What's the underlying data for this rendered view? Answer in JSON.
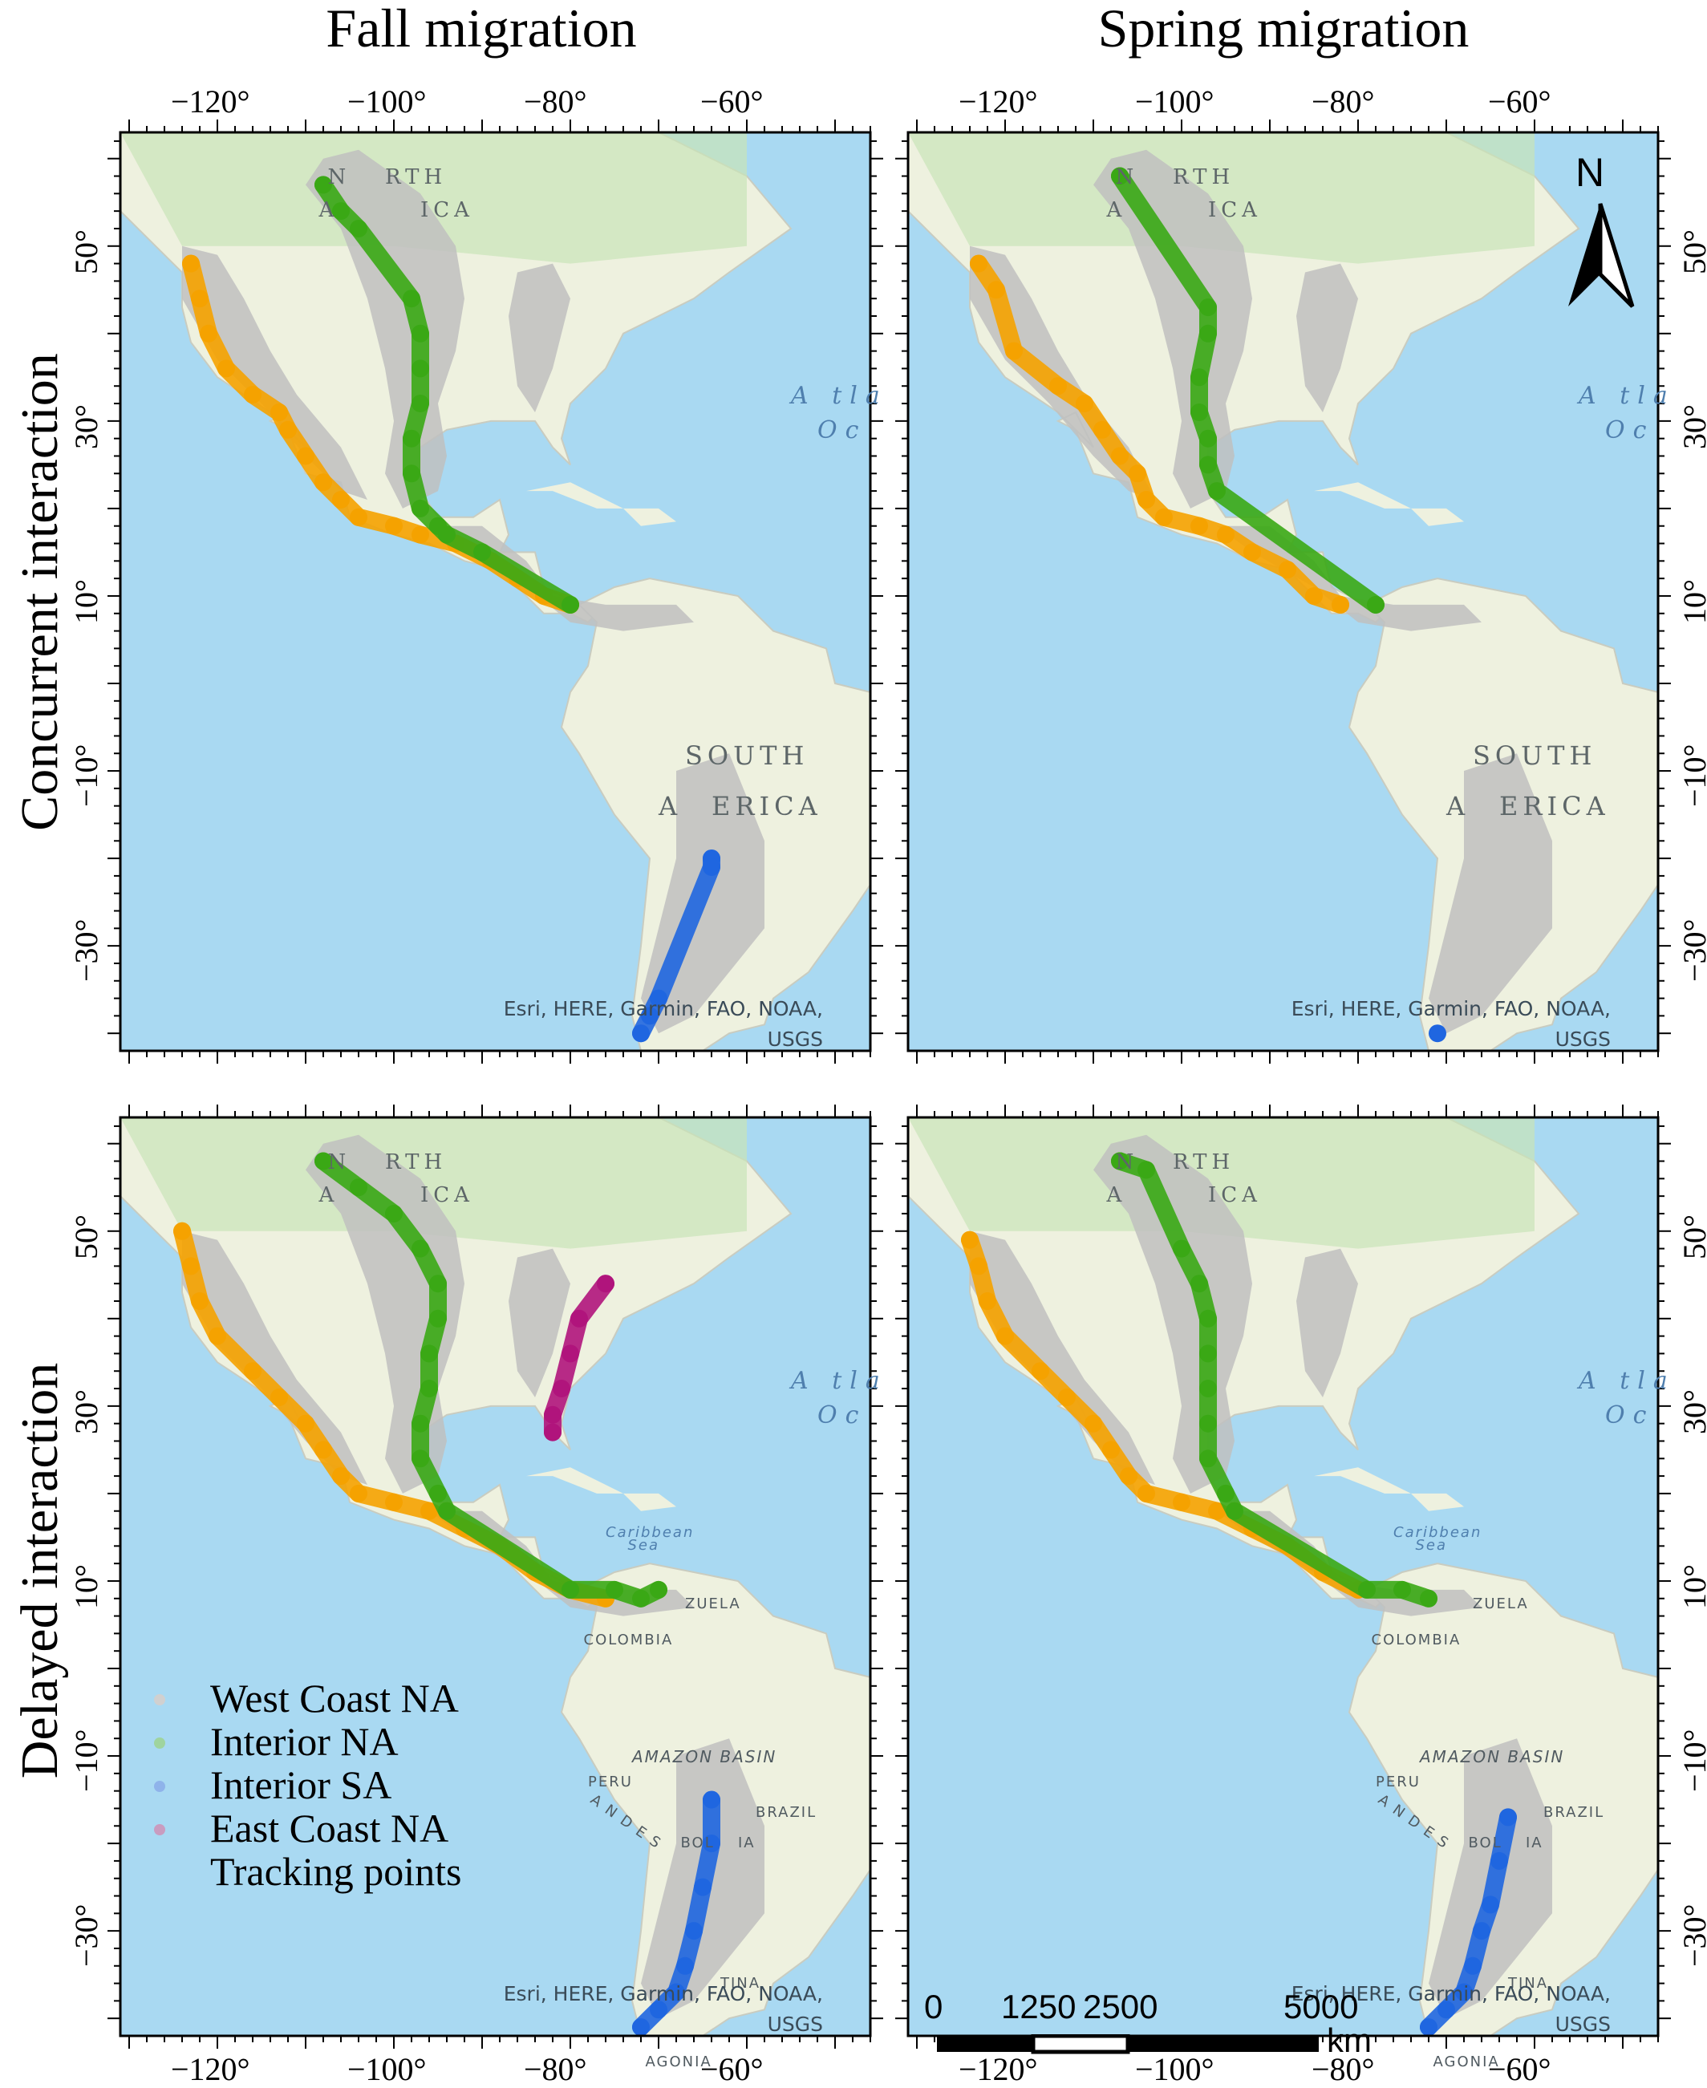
{
  "columns": {
    "fall": "Fall migration",
    "spring": "Spring migration"
  },
  "rows": {
    "concurrent": "Concurrent interaction",
    "delayed": "Delayed interaction"
  },
  "axes": {
    "lon_labels": [
      "−120°",
      "−100°",
      "−80°",
      "−60°"
    ],
    "lat_labels": [
      "50°",
      "30°",
      "10°",
      "−10°",
      "−30°"
    ],
    "lon_values": [
      -120,
      -100,
      -80,
      -60
    ],
    "lat_values": [
      50,
      30,
      10,
      -10,
      -30
    ],
    "lon_range": [
      -131,
      -46
    ],
    "lat_range": [
      -42,
      63
    ]
  },
  "basemap": {
    "attribution_line1": "Esri, HERE, Garmin, FAO, NOAA,",
    "attribution_line2": "USGS",
    "north_america": [
      "N",
      "RTH",
      "A",
      "ICA"
    ],
    "south_america": [
      "SOUTH",
      "A",
      "ERICA"
    ],
    "atlantic": [
      "A tla",
      "Oc"
    ],
    "caribbean": [
      "Caribbean",
      "Sea"
    ],
    "country_labels": [
      "ZUELA",
      "COLOMBIA",
      "PERU",
      "BRAZIL",
      "BOL",
      "IA",
      "TINA",
      "AGONIA"
    ],
    "region_labels": [
      "AMAZON BASIN",
      "A N D E S"
    ]
  },
  "legend": {
    "items": [
      {
        "label": "West Coast NA",
        "color": "#f5a200"
      },
      {
        "label": "Interior NA",
        "color": "#3aa815"
      },
      {
        "label": "Interior SA",
        "color": "#1f66e0"
      },
      {
        "label": "East Coast NA",
        "color": "#b0147c"
      }
    ],
    "footer": "Tracking points"
  },
  "north_arrow": {
    "label": "N"
  },
  "scale_bar": {
    "labels": [
      "0",
      "1250",
      "2500",
      "5000"
    ],
    "values": [
      0,
      1250,
      2500,
      5000
    ],
    "unit": "km"
  },
  "colors": {
    "west_coast": "#f5a200",
    "interior_na": "#3aa815",
    "interior_sa": "#1f66e0",
    "east_coast": "#b0147c",
    "ocean": "#a9d9f2",
    "land": "#eef1df",
    "range": "#c0c0c0"
  },
  "tracks": {
    "concurrent_fall": {
      "west_coast": [
        [
          -123,
          48
        ],
        [
          -122,
          44
        ],
        [
          -121,
          40
        ],
        [
          -119,
          36
        ],
        [
          -116,
          33
        ],
        [
          -113,
          31
        ],
        [
          -112,
          29
        ],
        [
          -110,
          26
        ],
        [
          -108,
          23
        ],
        [
          -106,
          21
        ],
        [
          -104,
          19
        ],
        [
          -100,
          18
        ],
        [
          -97,
          17
        ],
        [
          -93,
          16
        ],
        [
          -89,
          14
        ],
        [
          -86,
          12
        ],
        [
          -83,
          10
        ],
        [
          -80,
          9
        ]
      ],
      "interior_na": [
        [
          -108,
          57
        ],
        [
          -106,
          54
        ],
        [
          -104,
          52
        ],
        [
          -98,
          44
        ],
        [
          -97,
          40
        ],
        [
          -97,
          36
        ],
        [
          -97,
          32
        ],
        [
          -98,
          28
        ],
        [
          -98,
          24
        ],
        [
          -97,
          20
        ],
        [
          -95,
          18
        ],
        [
          -94,
          17
        ],
        [
          -90,
          15
        ],
        [
          -80,
          9
        ]
      ],
      "interior_sa": [
        [
          -64,
          -20
        ],
        [
          -64,
          -21
        ],
        [
          -70,
          -36
        ],
        [
          -71,
          -38
        ],
        [
          -72,
          -40
        ]
      ],
      "east_coast": []
    },
    "concurrent_spring": {
      "west_coast": [
        [
          -123,
          48
        ],
        [
          -121,
          45
        ],
        [
          -119,
          38
        ],
        [
          -114,
          34
        ],
        [
          -111,
          32
        ],
        [
          -109,
          29
        ],
        [
          -107,
          26
        ],
        [
          -105,
          24
        ],
        [
          -104,
          21
        ],
        [
          -102,
          19
        ],
        [
          -98,
          18
        ],
        [
          -95,
          17
        ],
        [
          -92,
          15
        ],
        [
          -88,
          13
        ],
        [
          -85,
          10
        ],
        [
          -82,
          9
        ]
      ],
      "interior_na": [
        [
          -107,
          58
        ],
        [
          -97,
          43
        ],
        [
          -97,
          40
        ],
        [
          -98,
          35
        ],
        [
          -98,
          31
        ],
        [
          -97,
          28
        ],
        [
          -97,
          25
        ],
        [
          -96,
          22
        ],
        [
          -78,
          9
        ]
      ],
      "interior_sa": [
        [
          -71,
          -40
        ]
      ],
      "east_coast": []
    },
    "delayed_fall": {
      "west_coast": [
        [
          -124,
          50
        ],
        [
          -123,
          46
        ],
        [
          -122,
          42
        ],
        [
          -120,
          38
        ],
        [
          -116,
          34
        ],
        [
          -113,
          31
        ],
        [
          -110,
          28
        ],
        [
          -108,
          25
        ],
        [
          -106,
          22
        ],
        [
          -104,
          20
        ],
        [
          -100,
          19
        ],
        [
          -96,
          18
        ],
        [
          -92,
          16
        ],
        [
          -88,
          14
        ],
        [
          -84,
          11
        ],
        [
          -80,
          9
        ],
        [
          -76,
          8
        ]
      ],
      "interior_na": [
        [
          -108,
          58
        ],
        [
          -104,
          55
        ],
        [
          -100,
          52
        ],
        [
          -97,
          48
        ],
        [
          -95,
          44
        ],
        [
          -95,
          40
        ],
        [
          -96,
          36
        ],
        [
          -96,
          32
        ],
        [
          -97,
          28
        ],
        [
          -97,
          24
        ],
        [
          -95,
          20
        ],
        [
          -94,
          18
        ],
        [
          -80,
          9
        ],
        [
          -75,
          9
        ],
        [
          -72,
          8
        ],
        [
          -70,
          9
        ]
      ],
      "interior_sa": [
        [
          -64,
          -15
        ],
        [
          -64,
          -20
        ],
        [
          -65,
          -25
        ],
        [
          -66,
          -30
        ],
        [
          -67,
          -34
        ],
        [
          -68,
          -37
        ],
        [
          -70,
          -39
        ],
        [
          -72,
          -41
        ]
      ],
      "east_coast": [
        [
          -76,
          44
        ],
        [
          -79,
          40
        ],
        [
          -80,
          36
        ],
        [
          -81,
          32
        ],
        [
          -82,
          29
        ],
        [
          -82,
          27
        ]
      ]
    },
    "delayed_spring": {
      "west_coast": [
        [
          -124,
          49
        ],
        [
          -123,
          46
        ],
        [
          -122,
          42
        ],
        [
          -120,
          38
        ],
        [
          -116,
          34
        ],
        [
          -113,
          31
        ],
        [
          -110,
          28
        ],
        [
          -108,
          25
        ],
        [
          -106,
          22
        ],
        [
          -104,
          20
        ],
        [
          -100,
          19
        ],
        [
          -96,
          18
        ],
        [
          -92,
          16
        ],
        [
          -88,
          14
        ],
        [
          -84,
          11
        ],
        [
          -80,
          9
        ]
      ],
      "interior_na": [
        [
          -107,
          58
        ],
        [
          -104,
          57
        ],
        [
          -100,
          48
        ],
        [
          -98,
          44
        ],
        [
          -97,
          40
        ],
        [
          -97,
          36
        ],
        [
          -97,
          32
        ],
        [
          -97,
          28
        ],
        [
          -97,
          24
        ],
        [
          -95,
          20
        ],
        [
          -94,
          18
        ],
        [
          -79,
          9
        ],
        [
          -75,
          9
        ],
        [
          -72,
          8
        ]
      ],
      "interior_sa": [
        [
          -63,
          -17
        ],
        [
          -64,
          -22
        ],
        [
          -65,
          -27
        ],
        [
          -66,
          -30
        ],
        [
          -67,
          -34
        ],
        [
          -68,
          -37
        ],
        [
          -70,
          -39
        ],
        [
          -72,
          -41
        ]
      ],
      "east_coast": []
    }
  }
}
